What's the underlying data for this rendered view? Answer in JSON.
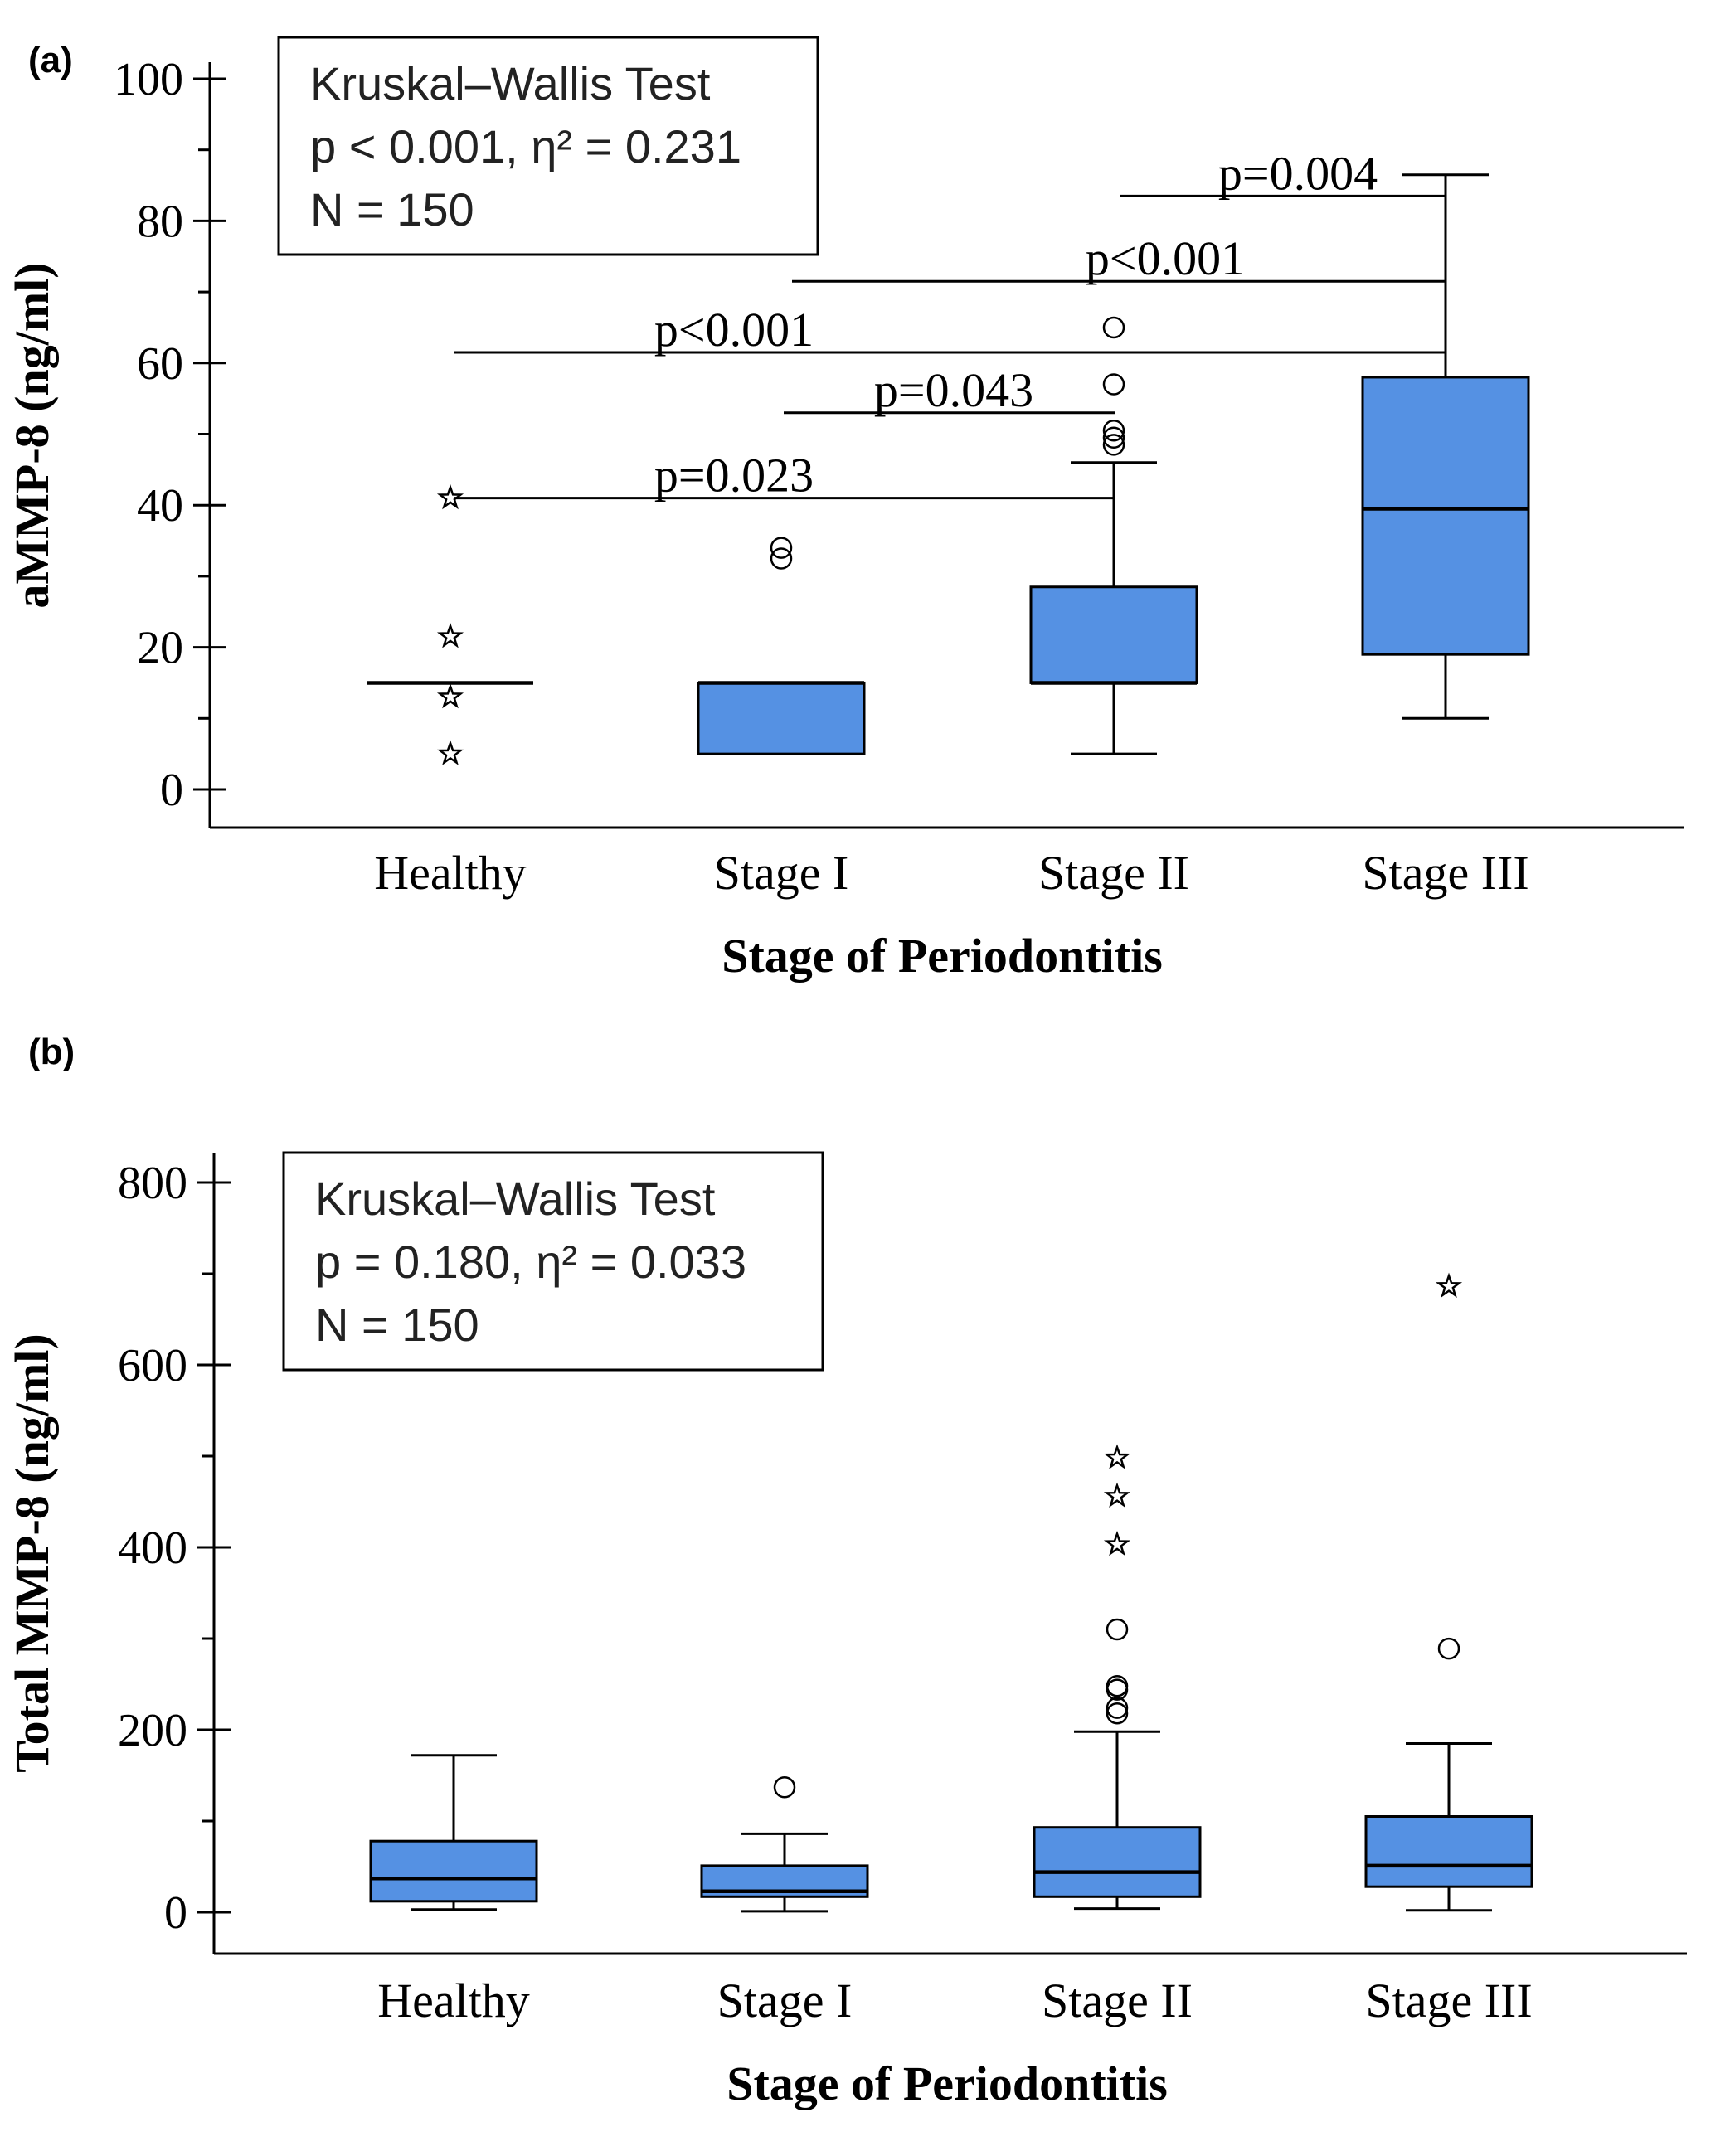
{
  "colors": {
    "box_fill": "#5591e3",
    "line": "#000000"
  },
  "chart_data": [
    {
      "panel": "(a)",
      "type": "box",
      "xlabel": "Stage of Periodontitis",
      "ylabel": "aMMP-8 (ng/ml)",
      "ylim": [
        0,
        100
      ],
      "yticks": [
        0,
        20,
        40,
        60,
        80,
        100
      ],
      "categories": [
        "Healthy",
        "Stage I",
        "Stage II",
        "Stage III"
      ],
      "boxes": [
        {
          "category": "Healthy",
          "q1": 15,
          "median": 15,
          "q3": 15,
          "whisker_low": 15,
          "whisker_high": 15,
          "outliers": [],
          "extremes": [
            41,
            21.5,
            13,
            5
          ]
        },
        {
          "category": "Stage I",
          "q1": 5,
          "median": 15,
          "q3": 15,
          "whisker_low": 5,
          "whisker_high": 15,
          "outliers": [
            34,
            32.5
          ],
          "extremes": []
        },
        {
          "category": "Stage II",
          "q1": 15,
          "median": 15,
          "q3": 28.5,
          "whisker_low": 5,
          "whisker_high": 46,
          "outliers": [
            65,
            57,
            50.5,
            49.5,
            48.5
          ],
          "extremes": []
        },
        {
          "category": "Stage III",
          "q1": 19,
          "median": 39.5,
          "q3": 58,
          "whisker_low": 10,
          "whisker_high": 86.5,
          "outliers": [],
          "extremes": []
        }
      ],
      "legend_box": [
        "Kruskal–Wallis Test",
        "p < 0.001, η² = 0.231",
        "N = 150"
      ],
      "comparisons": [
        {
          "from": "Stage III",
          "to": "Stage III",
          "y": 83.5,
          "label": "p=0.004"
        },
        {
          "from": "Stage I",
          "to": "Stage III",
          "y": 71.5,
          "label": "p<0.001"
        },
        {
          "from": "Healthy",
          "to": "Stage III",
          "y": 61.5,
          "label": "p<0.001"
        },
        {
          "from": "Stage I",
          "to": "Stage II",
          "y": 53,
          "label": "p=0.043"
        },
        {
          "from": "Healthy",
          "to": "Stage II",
          "y": 41,
          "label": "p=0.023"
        }
      ]
    },
    {
      "panel": "(b)",
      "type": "box",
      "xlabel": "Stage of Periodontitis",
      "ylabel": "Total MMP-8 (ng/ml)",
      "ylim": [
        0,
        800
      ],
      "yticks": [
        0,
        200,
        400,
        600,
        800
      ],
      "categories": [
        "Healthy",
        "Stage I",
        "Stage II",
        "Stage III"
      ],
      "boxes": [
        {
          "category": "Healthy",
          "q1": 12,
          "median": 37,
          "q3": 78,
          "whisker_low": 3,
          "whisker_high": 172,
          "outliers": [],
          "extremes": []
        },
        {
          "category": "Stage I",
          "q1": 17,
          "median": 23,
          "q3": 51,
          "whisker_low": 1,
          "whisker_high": 86,
          "outliers": [
            137
          ],
          "extremes": []
        },
        {
          "category": "Stage II",
          "q1": 17,
          "median": 44,
          "q3": 93,
          "whisker_low": 4,
          "whisker_high": 198,
          "outliers": [
            310,
            248,
            244,
            224,
            218
          ],
          "extremes": [
            498,
            456,
            403
          ]
        },
        {
          "category": "Stage III",
          "q1": 28,
          "median": 51,
          "q3": 105,
          "whisker_low": 2,
          "whisker_high": 185,
          "outliers": [
            289
          ],
          "extremes": [
            686
          ]
        }
      ],
      "legend_box": [
        "Kruskal–Wallis Test",
        "p = 0.180, η² = 0.033",
        "N = 150"
      ],
      "comparisons": []
    }
  ]
}
